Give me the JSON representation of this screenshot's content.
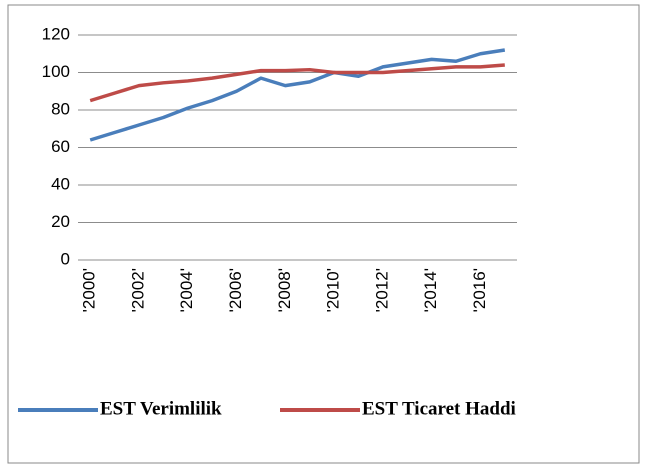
{
  "chart_data": {
    "type": "line",
    "categories": [
      "'2000'",
      null,
      "'2002'",
      null,
      "'2004'",
      null,
      "'2006'",
      null,
      "'2008'",
      null,
      "'2010'",
      null,
      "'2012'",
      null,
      "'2014'",
      null,
      "'2016'",
      null
    ],
    "series": [
      {
        "name": "EST Verimlilik",
        "color": "#4a7ebb",
        "values": [
          64,
          68,
          72,
          76,
          81,
          85,
          90,
          97,
          93,
          95,
          100,
          98,
          103,
          105,
          107,
          106,
          110,
          112
        ]
      },
      {
        "name": "EST Ticaret Haddi",
        "color": "#be4b48",
        "values": [
          85,
          89,
          93,
          94.5,
          95.5,
          97,
          99,
          101,
          101,
          101.5,
          100,
          100,
          100,
          101,
          102,
          103,
          103,
          104
        ]
      }
    ],
    "ylim": [
      0,
      120
    ],
    "yticks": [
      0,
      20,
      40,
      60,
      80,
      100,
      120
    ],
    "grid": true,
    "legend": "bottom"
  }
}
